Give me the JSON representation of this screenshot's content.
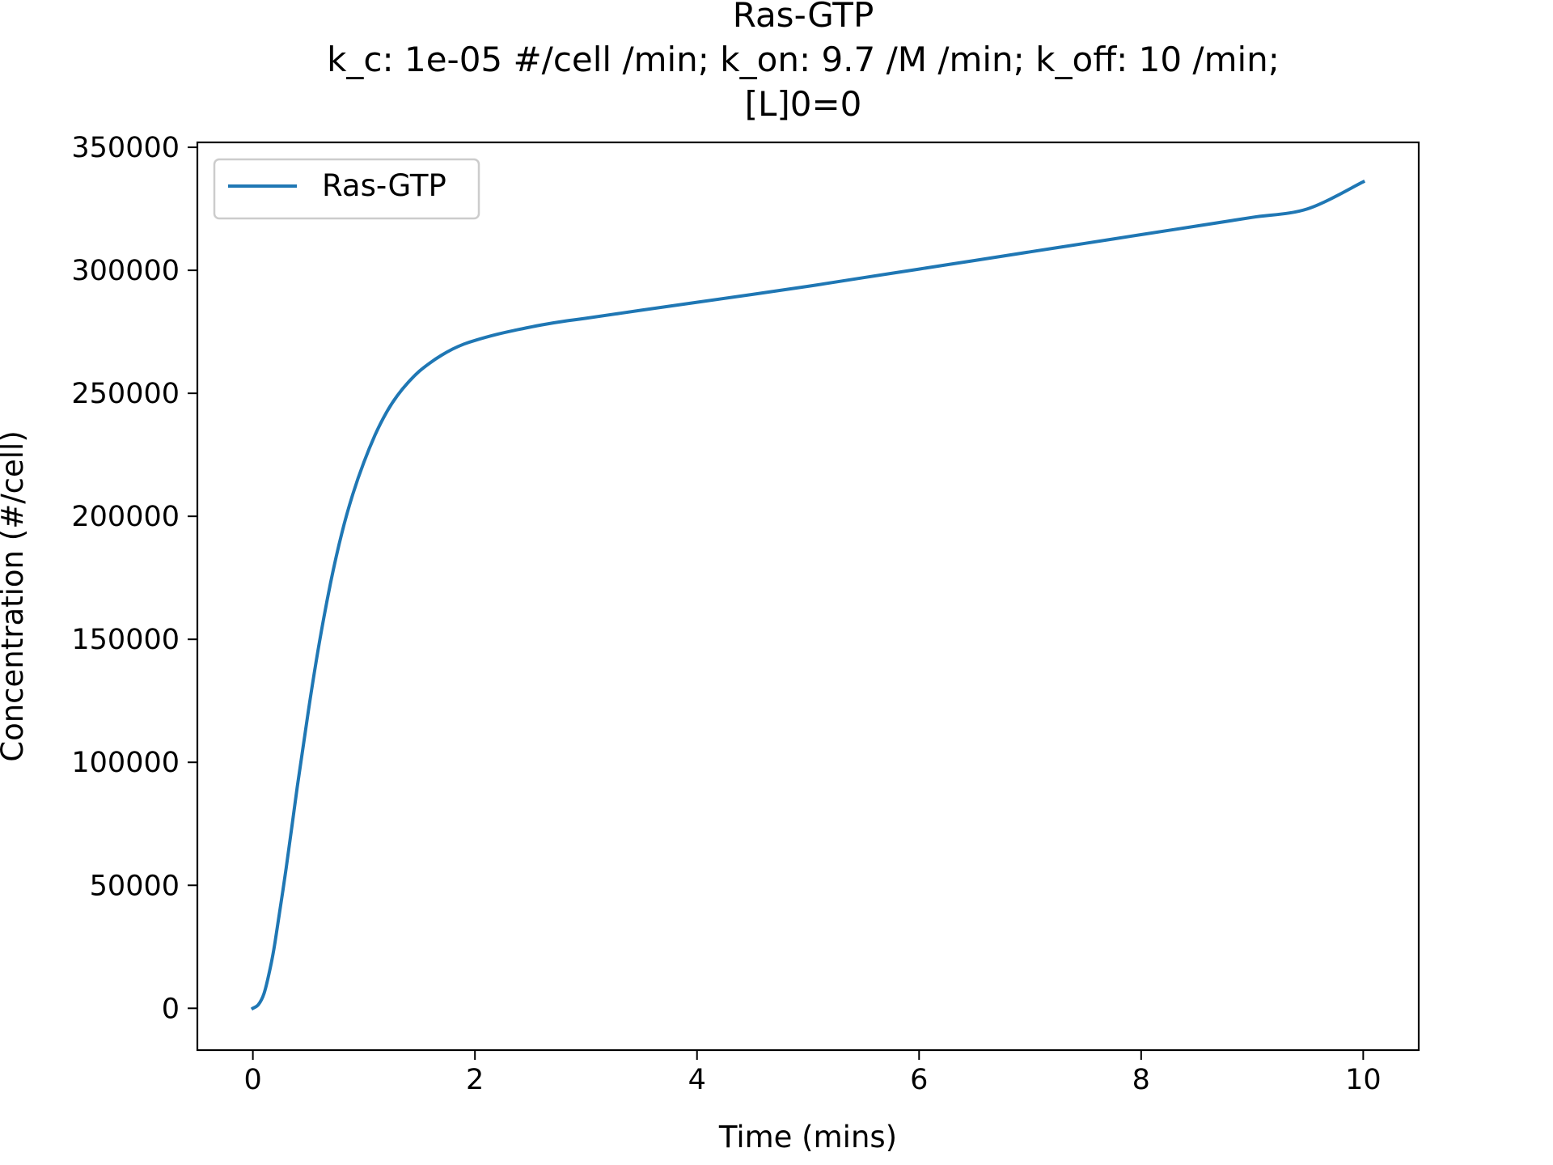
{
  "chart_data": {
    "type": "line",
    "title_lines": [
      "Ras-GTP",
      "k_c: 1e-05 #/cell /min; k_on: 9.7 /M /min; k_off: 10 /min;",
      "[L]0=0"
    ],
    "xlabel": "Time (mins)",
    "ylabel": "Concentration (#/cell)",
    "xlim": [
      -0.5,
      10.5
    ],
    "ylim": [
      -17000,
      352000
    ],
    "xticks": [
      0,
      2,
      4,
      6,
      8,
      10
    ],
    "xtick_labels": [
      "0",
      "2",
      "4",
      "6",
      "8",
      "10"
    ],
    "yticks": [
      0,
      50000,
      100000,
      150000,
      200000,
      250000,
      300000,
      350000
    ],
    "ytick_labels": [
      "0",
      "50000",
      "100000",
      "150000",
      "200000",
      "250000",
      "300000",
      "350000"
    ],
    "grid": false,
    "legend": {
      "position": "upper-left",
      "entries": [
        "Ras-GTP"
      ]
    },
    "series": [
      {
        "name": "Ras-GTP",
        "color": "#1f77b4",
        "x": [
          0,
          0.05,
          0.1,
          0.15,
          0.2,
          0.3,
          0.4,
          0.5,
          0.6,
          0.7,
          0.8,
          0.9,
          1.0,
          1.1,
          1.2,
          1.3,
          1.4,
          1.5,
          1.6,
          1.7,
          1.8,
          1.9,
          2.0,
          2.2,
          2.4,
          2.6,
          2.8,
          3.0,
          3.5,
          4.0,
          4.5,
          5.0,
          5.5,
          6.0,
          6.5,
          7.0,
          7.5,
          8.0,
          8.5,
          9.0,
          9.5,
          10.0
        ],
        "y": [
          0,
          1500,
          6000,
          15000,
          27000,
          57000,
          90000,
          121000,
          149000,
          173000,
          193000,
          209000,
          222000,
          233000,
          242000,
          249000,
          254500,
          259000,
          262500,
          265500,
          268000,
          270000,
          271500,
          274000,
          276000,
          277800,
          279300,
          280500,
          283800,
          287000,
          290200,
          293500,
          297000,
          300500,
          304000,
          307500,
          311000,
          314500,
          318000,
          321500,
          325000,
          336000
        ]
      }
    ]
  }
}
